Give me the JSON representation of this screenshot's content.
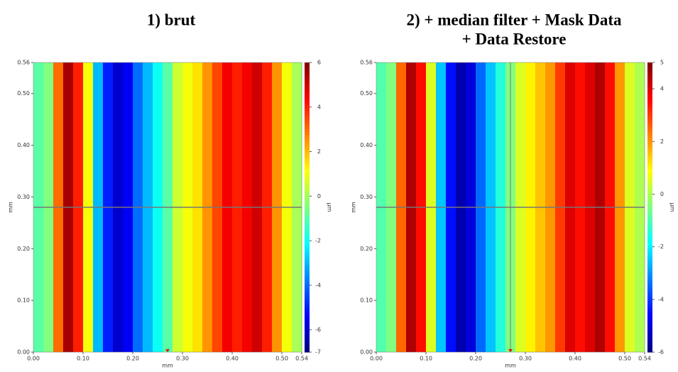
{
  "chart_data": [
    {
      "type": "heatmap",
      "title_lines": [
        "1) brut"
      ],
      "xlabel": "mm",
      "ylabel": "mm",
      "colorbar_label": "µm",
      "xlim": [
        0,
        0.54
      ],
      "ylim": [
        0,
        0.56
      ],
      "zlim": [
        -7,
        6
      ],
      "xticks": [
        {
          "value": 0,
          "label": "0.00"
        },
        {
          "value": 0.1,
          "label": "0.10"
        },
        {
          "value": 0.2,
          "label": "0.20"
        },
        {
          "value": 0.3,
          "label": "0.30"
        },
        {
          "value": 0.4,
          "label": "0.40"
        },
        {
          "value": 0.5,
          "label": "0.50"
        },
        0.54
      ],
      "yticks": [
        {
          "value": 0,
          "label": "0.00"
        },
        {
          "value": 0.1,
          "label": "0.10"
        },
        {
          "value": 0.2,
          "label": "0.20"
        },
        {
          "value": 0.3,
          "label": "0.30"
        },
        {
          "value": 0.4,
          "label": "0.40"
        },
        {
          "value": 0.5,
          "label": "0.50"
        },
        0.56
      ],
      "zticks": [
        6,
        4,
        2,
        0,
        -2,
        -4,
        -6,
        -7
      ],
      "cursor_x": 0.27,
      "cursor_y": 0.28,
      "vertical_cursor": false,
      "x": [
        0,
        0.02,
        0.04,
        0.06,
        0.08,
        0.1,
        0.12,
        0.14,
        0.16,
        0.18,
        0.2,
        0.22,
        0.24,
        0.26,
        0.28,
        0.3,
        0.32,
        0.34,
        0.36,
        0.38,
        0.4,
        0.42,
        0.44,
        0.46,
        0.48,
        0.5,
        0.52
      ],
      "values": [
        -1,
        -0.5,
        3,
        5.5,
        4,
        1,
        -3,
        -5,
        -6,
        -5.5,
        -4,
        -3,
        -2,
        -1,
        0.5,
        1,
        1.5,
        2.5,
        3.5,
        4.5,
        4,
        4.5,
        5,
        4,
        2.5,
        1,
        0
      ]
    },
    {
      "type": "heatmap",
      "title_lines": [
        "2) + median filter + Mask Data",
        "+ Data Restore"
      ],
      "xlabel": "mm",
      "ylabel": "mm",
      "colorbar_label": "µm",
      "xlim": [
        0,
        0.54
      ],
      "ylim": [
        0,
        0.56
      ],
      "zlim": [
        -6,
        5
      ],
      "xticks": [
        {
          "value": 0,
          "label": "0.00"
        },
        {
          "value": 0.1,
          "label": "0.10"
        },
        {
          "value": 0.2,
          "label": "0.20"
        },
        {
          "value": 0.3,
          "label": "0.30"
        },
        {
          "value": 0.4,
          "label": "0.40"
        },
        {
          "value": 0.5,
          "label": "0.50"
        },
        0.54
      ],
      "yticks": [
        {
          "value": 0,
          "label": "0.00"
        },
        {
          "value": 0.1,
          "label": "0.10"
        },
        {
          "value": 0.2,
          "label": "0.20"
        },
        {
          "value": 0.3,
          "label": "0.30"
        },
        {
          "value": 0.4,
          "label": "0.40"
        },
        {
          "value": 0.5,
          "label": "0.50"
        },
        0.56
      ],
      "zticks": [
        5,
        4,
        2,
        0,
        -2,
        -4,
        -6
      ],
      "cursor_x": 0.27,
      "cursor_y": 0.28,
      "vertical_cursor": true,
      "x": [
        0,
        0.02,
        0.04,
        0.06,
        0.08,
        0.1,
        0.12,
        0.14,
        0.16,
        0.18,
        0.2,
        0.22,
        0.24,
        0.26,
        0.28,
        0.3,
        0.32,
        0.34,
        0.36,
        0.38,
        0.4,
        0.42,
        0.44,
        0.46,
        0.48,
        0.5,
        0.52
      ],
      "values": [
        -1,
        -0.5,
        2.5,
        4.5,
        3.5,
        0.5,
        -2.5,
        -4.5,
        -5.5,
        -5,
        -3.5,
        -2.5,
        -1.5,
        -0.5,
        0.5,
        1,
        1.5,
        2,
        3,
        4,
        3.5,
        4,
        4.5,
        3.5,
        2,
        0.5,
        0
      ]
    }
  ]
}
